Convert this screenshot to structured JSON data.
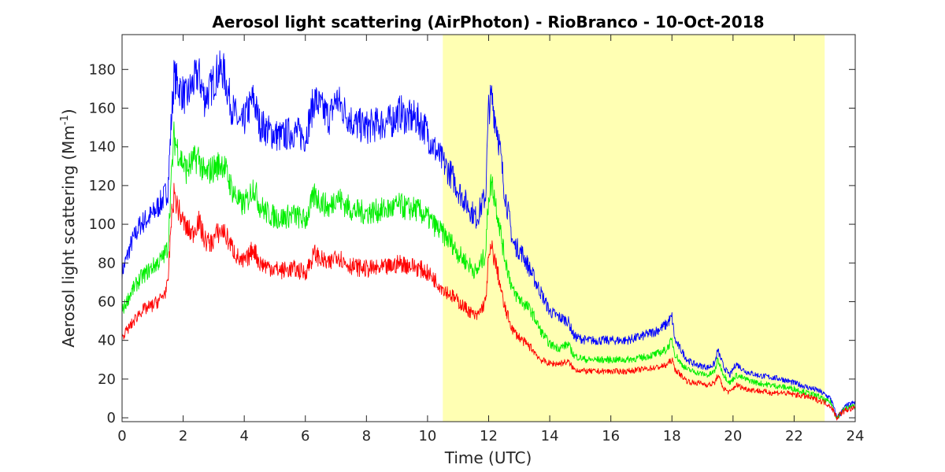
{
  "chart_data": {
    "type": "line",
    "title": "Aerosol light scattering (AirPhoton) - RioBranco - 10-Oct-2018",
    "xlabel": "Time (UTC)",
    "ylabel_main": "Aerosol light scattering (Mm",
    "ylabel_sup": "-1",
    "ylabel_close": ")",
    "xlim": [
      0,
      24
    ],
    "ylim": [
      -2,
      198
    ],
    "xticks": [
      0,
      2,
      4,
      6,
      8,
      10,
      12,
      14,
      16,
      18,
      20,
      22,
      24
    ],
    "yticks": [
      0,
      20,
      40,
      60,
      80,
      100,
      120,
      140,
      160,
      180
    ],
    "grid": false,
    "highlight": {
      "x_start": 10.5,
      "x_end": 23.0,
      "color": "#ffffb3"
    },
    "series": [
      {
        "color": "#0000ff",
        "x": [
          0,
          0.3,
          0.6,
          1.0,
          1.3,
          1.5,
          1.6,
          1.7,
          1.9,
          2.1,
          2.3,
          2.5,
          2.7,
          2.9,
          3.1,
          3.3,
          3.6,
          3.9,
          4.1,
          4.3,
          4.5,
          4.8,
          5.2,
          5.6,
          6.0,
          6.3,
          6.5,
          6.8,
          7.0,
          7.3,
          7.6,
          8.0,
          8.4,
          8.8,
          9.1,
          9.3,
          9.6,
          9.9,
          10.2,
          10.5,
          10.8,
          11.0,
          11.3,
          11.6,
          11.9,
          12.0,
          12.1,
          12.3,
          12.5,
          12.8,
          13.1,
          13.4,
          13.7,
          14.0,
          14.3,
          14.6,
          14.8,
          15.2,
          15.6,
          16.0,
          16.5,
          17.0,
          17.5,
          17.8,
          18.0,
          18.1,
          18.3,
          18.5,
          18.7,
          18.9,
          19.2,
          19.4,
          19.5,
          19.7,
          19.9,
          20.1,
          20.4,
          20.8,
          21.2,
          21.6,
          22.0,
          22.4,
          22.8,
          23.0,
          23.2,
          23.4,
          23.5,
          23.7,
          24.0
        ],
        "y": [
          75,
          90,
          100,
          105,
          112,
          118,
          150,
          176,
          170,
          165,
          172,
          178,
          165,
          170,
          178,
          180,
          160,
          150,
          158,
          165,
          152,
          148,
          145,
          148,
          145,
          165,
          160,
          155,
          165,
          158,
          152,
          150,
          152,
          153,
          158,
          155,
          155,
          150,
          140,
          132,
          125,
          118,
          110,
          103,
          115,
          160,
          165,
          148,
          120,
          90,
          85,
          75,
          65,
          55,
          52,
          50,
          42,
          40,
          40,
          40,
          40,
          42,
          45,
          48,
          52,
          40,
          35,
          30,
          28,
          27,
          26,
          28,
          35,
          26,
          22,
          28,
          24,
          22,
          21,
          20,
          18,
          16,
          14,
          12,
          10,
          0,
          2,
          6,
          8
        ]
      },
      {
        "color": "#00ee00",
        "x": [
          0,
          0.3,
          0.6,
          1.0,
          1.3,
          1.5,
          1.6,
          1.7,
          1.9,
          2.1,
          2.3,
          2.5,
          2.7,
          2.9,
          3.1,
          3.3,
          3.6,
          3.9,
          4.1,
          4.3,
          4.5,
          4.8,
          5.2,
          5.6,
          6.0,
          6.3,
          6.5,
          6.8,
          7.0,
          7.3,
          7.6,
          8.0,
          8.4,
          8.8,
          9.1,
          9.3,
          9.6,
          9.9,
          10.2,
          10.5,
          10.8,
          11.0,
          11.3,
          11.6,
          11.9,
          12.0,
          12.1,
          12.3,
          12.5,
          12.8,
          13.1,
          13.4,
          13.7,
          14.0,
          14.3,
          14.6,
          14.8,
          15.2,
          15.6,
          16.0,
          16.5,
          17.0,
          17.5,
          17.8,
          18.0,
          18.1,
          18.3,
          18.5,
          18.7,
          18.9,
          19.2,
          19.4,
          19.5,
          19.7,
          19.9,
          20.1,
          20.4,
          20.8,
          21.2,
          21.6,
          22.0,
          22.4,
          22.8,
          23.0,
          23.2,
          23.4,
          23.5,
          23.7,
          24.0
        ],
        "y": [
          55,
          65,
          72,
          78,
          82,
          88,
          120,
          145,
          135,
          128,
          132,
          135,
          125,
          128,
          130,
          132,
          118,
          110,
          112,
          120,
          110,
          105,
          103,
          105,
          102,
          115,
          112,
          108,
          115,
          110,
          107,
          106,
          107,
          108,
          110,
          108,
          108,
          105,
          100,
          95,
          90,
          85,
          80,
          75,
          85,
          115,
          122,
          105,
          85,
          65,
          60,
          55,
          45,
          38,
          36,
          38,
          32,
          30,
          30,
          30,
          30,
          31,
          33,
          35,
          40,
          33,
          28,
          25,
          24,
          23,
          22,
          24,
          30,
          22,
          18,
          22,
          20,
          18,
          17,
          16,
          15,
          13,
          11,
          9,
          8,
          0,
          2,
          5,
          6
        ]
      },
      {
        "color": "#ff0000",
        "x": [
          0,
          0.3,
          0.6,
          1.0,
          1.3,
          1.5,
          1.6,
          1.7,
          1.9,
          2.1,
          2.3,
          2.5,
          2.7,
          2.9,
          3.1,
          3.3,
          3.6,
          3.9,
          4.1,
          4.3,
          4.5,
          4.8,
          5.2,
          5.6,
          6.0,
          6.3,
          6.5,
          6.8,
          7.0,
          7.3,
          7.6,
          8.0,
          8.4,
          8.8,
          9.1,
          9.3,
          9.6,
          9.9,
          10.2,
          10.5,
          10.8,
          11.0,
          11.3,
          11.6,
          11.9,
          12.0,
          12.1,
          12.3,
          12.5,
          12.8,
          13.1,
          13.4,
          13.7,
          14.0,
          14.3,
          14.6,
          14.8,
          15.2,
          15.6,
          16.0,
          16.5,
          17.0,
          17.5,
          17.8,
          18.0,
          18.1,
          18.3,
          18.5,
          18.7,
          18.9,
          19.2,
          19.4,
          19.5,
          19.7,
          19.9,
          20.1,
          20.4,
          20.8,
          21.2,
          21.6,
          22.0,
          22.4,
          22.8,
          23.0,
          23.2,
          23.4,
          23.5,
          23.7,
          24.0
        ],
        "y": [
          42,
          48,
          55,
          58,
          62,
          68,
          100,
          115,
          105,
          98,
          95,
          102,
          92,
          90,
          95,
          97,
          88,
          80,
          82,
          88,
          80,
          78,
          76,
          77,
          75,
          85,
          82,
          79,
          85,
          80,
          78,
          77,
          77,
          78,
          80,
          79,
          78,
          76,
          72,
          67,
          63,
          60,
          56,
          52,
          60,
          82,
          88,
          75,
          58,
          45,
          40,
          36,
          30,
          28,
          28,
          29,
          25,
          24,
          24,
          24,
          24,
          25,
          26,
          27,
          30,
          25,
          22,
          19,
          18,
          18,
          17,
          18,
          22,
          15,
          13,
          17,
          15,
          14,
          13,
          13,
          12,
          11,
          9,
          8,
          6,
          0,
          2,
          4,
          5
        ]
      }
    ]
  }
}
